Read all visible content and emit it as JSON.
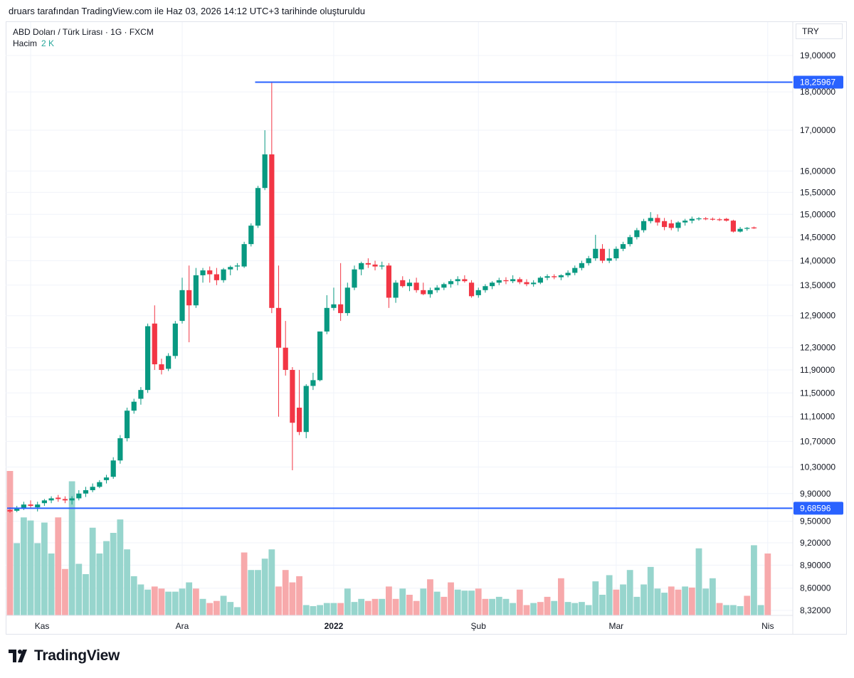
{
  "caption": "druars tarafından TradingView.com ile Haz 03, 2026 14:12 UTC+3 tarihinde oluşturuldu",
  "legend": {
    "symbol": "ABD Doları / Türk Lirası · 1G · FXCM",
    "volume_label": "Hacim",
    "volume_value": "2 K"
  },
  "currency": "TRY",
  "brand": "TradingView",
  "colors": {
    "up": "#089981",
    "down": "#f23645",
    "vol_up": "#97d5cd",
    "vol_down": "#f7a9ab",
    "line": "#2962ff"
  },
  "chart_data": {
    "type": "candlestick",
    "title": "ABD Doları / Türk Lirası · 1G · FXCM",
    "y_scale": "log",
    "y_ticks": [
      "19,00000",
      "18,00000",
      "17,00000",
      "16,00000",
      "15,50000",
      "15,00000",
      "14,50000",
      "14,00000",
      "13,50000",
      "12,90000",
      "12,30000",
      "11,90000",
      "11,50000",
      "11,10000",
      "10,70000",
      "10,30000",
      "9,90000",
      "9,50000",
      "9,20000",
      "8,90000",
      "8,60000",
      "8,32000"
    ],
    "x_ticks": [
      {
        "label": "Kas",
        "index": 3,
        "bold": false
      },
      {
        "label": "Ara",
        "index": 25,
        "bold": false
      },
      {
        "label": "2022",
        "index": 47,
        "bold": true
      },
      {
        "label": "Şub",
        "index": 68,
        "bold": false
      },
      {
        "label": "Mar",
        "index": 88,
        "bold": false
      },
      {
        "label": "Nis",
        "index": 110,
        "bold": false
      }
    ],
    "horizontal_lines": [
      {
        "label": "18,25967",
        "value": 18.25967,
        "start_index": 36
      },
      {
        "label": "9,68596",
        "value": 9.68596,
        "start_index": 0
      }
    ],
    "candles": [
      {
        "o": 9.66,
        "h": 9.7,
        "l": 9.62,
        "c": 9.64
      },
      {
        "o": 9.65,
        "h": 9.72,
        "l": 9.63,
        "c": 9.68
      },
      {
        "o": 9.68,
        "h": 9.78,
        "l": 9.66,
        "c": 9.74
      },
      {
        "o": 9.74,
        "h": 9.8,
        "l": 9.68,
        "c": 9.72
      },
      {
        "o": 9.7,
        "h": 9.78,
        "l": 9.64,
        "c": 9.74
      },
      {
        "o": 9.76,
        "h": 9.82,
        "l": 9.72,
        "c": 9.8
      },
      {
        "o": 9.8,
        "h": 9.86,
        "l": 9.76,
        "c": 9.83
      },
      {
        "o": 9.84,
        "h": 9.88,
        "l": 9.78,
        "c": 9.82
      },
      {
        "o": 9.82,
        "h": 9.86,
        "l": 9.76,
        "c": 9.8
      },
      {
        "o": 9.8,
        "h": 9.86,
        "l": 9.74,
        "c": 9.83
      },
      {
        "o": 9.83,
        "h": 9.95,
        "l": 9.8,
        "c": 9.9
      },
      {
        "o": 9.9,
        "h": 10.0,
        "l": 9.85,
        "c": 9.95
      },
      {
        "o": 9.95,
        "h": 10.05,
        "l": 9.92,
        "c": 10.0
      },
      {
        "o": 10.0,
        "h": 10.1,
        "l": 9.98,
        "c": 10.07
      },
      {
        "o": 10.1,
        "h": 10.18,
        "l": 10.05,
        "c": 10.14
      },
      {
        "o": 10.15,
        "h": 10.45,
        "l": 10.12,
        "c": 10.4
      },
      {
        "o": 10.4,
        "h": 10.8,
        "l": 10.35,
        "c": 10.75
      },
      {
        "o": 10.75,
        "h": 11.25,
        "l": 10.7,
        "c": 11.2
      },
      {
        "o": 11.2,
        "h": 11.4,
        "l": 11.15,
        "c": 11.35
      },
      {
        "o": 11.4,
        "h": 11.6,
        "l": 11.3,
        "c": 11.55
      },
      {
        "o": 11.55,
        "h": 12.75,
        "l": 11.5,
        "c": 12.7
      },
      {
        "o": 12.75,
        "h": 13.1,
        "l": 11.9,
        "c": 12.0
      },
      {
        "o": 12.0,
        "h": 12.1,
        "l": 11.82,
        "c": 11.9
      },
      {
        "o": 11.92,
        "h": 12.2,
        "l": 11.88,
        "c": 12.15
      },
      {
        "o": 12.15,
        "h": 12.8,
        "l": 12.1,
        "c": 12.75
      },
      {
        "o": 12.8,
        "h": 13.65,
        "l": 12.75,
        "c": 13.4
      },
      {
        "o": 13.4,
        "h": 13.9,
        "l": 12.4,
        "c": 13.1
      },
      {
        "o": 13.1,
        "h": 13.85,
        "l": 13.05,
        "c": 13.7
      },
      {
        "o": 13.7,
        "h": 13.85,
        "l": 13.55,
        "c": 13.8
      },
      {
        "o": 13.8,
        "h": 13.88,
        "l": 13.55,
        "c": 13.72
      },
      {
        "o": 13.72,
        "h": 13.85,
        "l": 13.5,
        "c": 13.6
      },
      {
        "o": 13.6,
        "h": 13.85,
        "l": 13.55,
        "c": 13.82
      },
      {
        "o": 13.82,
        "h": 13.9,
        "l": 13.7,
        "c": 13.87
      },
      {
        "o": 13.88,
        "h": 13.95,
        "l": 13.8,
        "c": 13.9
      },
      {
        "o": 13.88,
        "h": 14.4,
        "l": 13.85,
        "c": 14.35
      },
      {
        "o": 14.35,
        "h": 14.8,
        "l": 14.3,
        "c": 14.75
      },
      {
        "o": 14.75,
        "h": 15.65,
        "l": 14.7,
        "c": 15.6
      },
      {
        "o": 15.6,
        "h": 17.0,
        "l": 15.55,
        "c": 16.4
      },
      {
        "o": 16.4,
        "h": 18.26,
        "l": 12.95,
        "c": 13.05
      },
      {
        "o": 13.05,
        "h": 13.9,
        "l": 11.1,
        "c": 12.3
      },
      {
        "o": 12.3,
        "h": 12.8,
        "l": 11.8,
        "c": 11.9
      },
      {
        "o": 11.9,
        "h": 11.95,
        "l": 10.25,
        "c": 11.0
      },
      {
        "o": 11.25,
        "h": 11.9,
        "l": 10.8,
        "c": 10.85
      },
      {
        "o": 10.85,
        "h": 11.65,
        "l": 10.75,
        "c": 11.62
      },
      {
        "o": 11.62,
        "h": 11.85,
        "l": 11.55,
        "c": 11.72
      },
      {
        "o": 11.72,
        "h": 12.6,
        "l": 11.7,
        "c": 12.6
      },
      {
        "o": 12.6,
        "h": 13.3,
        "l": 12.55,
        "c": 13.05
      },
      {
        "o": 13.05,
        "h": 13.45,
        "l": 13.0,
        "c": 13.12
      },
      {
        "o": 13.12,
        "h": 13.95,
        "l": 12.8,
        "c": 12.95
      },
      {
        "o": 12.95,
        "h": 13.55,
        "l": 12.9,
        "c": 13.45
      },
      {
        "o": 13.45,
        "h": 13.9,
        "l": 13.4,
        "c": 13.82
      },
      {
        "o": 13.82,
        "h": 13.98,
        "l": 13.7,
        "c": 13.95
      },
      {
        "o": 13.95,
        "h": 14.05,
        "l": 13.85,
        "c": 13.92
      },
      {
        "o": 13.92,
        "h": 14.0,
        "l": 13.8,
        "c": 13.88
      },
      {
        "o": 13.88,
        "h": 13.98,
        "l": 13.82,
        "c": 13.9
      },
      {
        "o": 13.9,
        "h": 13.95,
        "l": 13.05,
        "c": 13.25
      },
      {
        "o": 13.25,
        "h": 13.6,
        "l": 13.15,
        "c": 13.55
      },
      {
        "o": 13.6,
        "h": 13.68,
        "l": 13.45,
        "c": 13.48
      },
      {
        "o": 13.48,
        "h": 13.62,
        "l": 13.38,
        "c": 13.55
      },
      {
        "o": 13.55,
        "h": 13.65,
        "l": 13.35,
        "c": 13.4
      },
      {
        "o": 13.4,
        "h": 13.55,
        "l": 13.3,
        "c": 13.32
      },
      {
        "o": 13.32,
        "h": 13.45,
        "l": 13.25,
        "c": 13.4
      },
      {
        "o": 13.4,
        "h": 13.5,
        "l": 13.35,
        "c": 13.45
      },
      {
        "o": 13.45,
        "h": 13.55,
        "l": 13.4,
        "c": 13.52
      },
      {
        "o": 13.52,
        "h": 13.62,
        "l": 13.45,
        "c": 13.58
      },
      {
        "o": 13.58,
        "h": 13.68,
        "l": 13.5,
        "c": 13.62
      },
      {
        "o": 13.62,
        "h": 13.7,
        "l": 13.55,
        "c": 13.58
      },
      {
        "o": 13.55,
        "h": 13.6,
        "l": 13.25,
        "c": 13.28
      },
      {
        "o": 13.3,
        "h": 13.45,
        "l": 13.25,
        "c": 13.4
      },
      {
        "o": 13.4,
        "h": 13.52,
        "l": 13.35,
        "c": 13.48
      },
      {
        "o": 13.48,
        "h": 13.58,
        "l": 13.42,
        "c": 13.55
      },
      {
        "o": 13.55,
        "h": 13.65,
        "l": 13.5,
        "c": 13.6
      },
      {
        "o": 13.6,
        "h": 13.66,
        "l": 13.52,
        "c": 13.58
      },
      {
        "o": 13.58,
        "h": 13.7,
        "l": 13.54,
        "c": 13.62
      },
      {
        "o": 13.62,
        "h": 13.66,
        "l": 13.52,
        "c": 13.56
      },
      {
        "o": 13.56,
        "h": 13.62,
        "l": 13.48,
        "c": 13.52
      },
      {
        "o": 13.52,
        "h": 13.6,
        "l": 13.47,
        "c": 13.55
      },
      {
        "o": 13.55,
        "h": 13.68,
        "l": 13.52,
        "c": 13.65
      },
      {
        "o": 13.65,
        "h": 13.72,
        "l": 13.6,
        "c": 13.68
      },
      {
        "o": 13.68,
        "h": 13.72,
        "l": 13.62,
        "c": 13.66
      },
      {
        "o": 13.66,
        "h": 13.72,
        "l": 13.6,
        "c": 13.7
      },
      {
        "o": 13.7,
        "h": 13.8,
        "l": 13.66,
        "c": 13.75
      },
      {
        "o": 13.75,
        "h": 13.9,
        "l": 13.7,
        "c": 13.85
      },
      {
        "o": 13.85,
        "h": 14.0,
        "l": 13.8,
        "c": 13.95
      },
      {
        "o": 13.95,
        "h": 14.1,
        "l": 13.9,
        "c": 14.05
      },
      {
        "o": 14.05,
        "h": 14.55,
        "l": 14.0,
        "c": 14.25
      },
      {
        "o": 14.25,
        "h": 14.35,
        "l": 13.95,
        "c": 14.0
      },
      {
        "o": 14.0,
        "h": 14.25,
        "l": 13.95,
        "c": 14.05
      },
      {
        "o": 14.05,
        "h": 14.3,
        "l": 14.0,
        "c": 14.25
      },
      {
        "o": 14.25,
        "h": 14.4,
        "l": 14.2,
        "c": 14.35
      },
      {
        "o": 14.35,
        "h": 14.55,
        "l": 14.3,
        "c": 14.5
      },
      {
        "o": 14.5,
        "h": 14.7,
        "l": 14.45,
        "c": 14.65
      },
      {
        "o": 14.65,
        "h": 14.9,
        "l": 14.6,
        "c": 14.85
      },
      {
        "o": 14.85,
        "h": 15.05,
        "l": 14.8,
        "c": 14.92
      },
      {
        "o": 14.92,
        "h": 15.0,
        "l": 14.75,
        "c": 14.82
      },
      {
        "o": 14.85,
        "h": 14.92,
        "l": 14.65,
        "c": 14.72
      },
      {
        "o": 14.8,
        "h": 14.88,
        "l": 14.65,
        "c": 14.7
      },
      {
        "o": 14.7,
        "h": 14.85,
        "l": 14.62,
        "c": 14.82
      },
      {
        "o": 14.82,
        "h": 14.9,
        "l": 14.75,
        "c": 14.86
      },
      {
        "o": 14.86,
        "h": 14.95,
        "l": 14.8,
        "c": 14.9
      },
      {
        "o": 14.9,
        "h": 14.94,
        "l": 14.86,
        "c": 14.91
      },
      {
        "o": 14.91,
        "h": 14.94,
        "l": 14.87,
        "c": 14.9
      },
      {
        "o": 14.9,
        "h": 14.93,
        "l": 14.86,
        "c": 14.89
      },
      {
        "o": 14.89,
        "h": 14.92,
        "l": 14.85,
        "c": 14.88
      },
      {
        "o": 14.9,
        "h": 14.92,
        "l": 14.84,
        "c": 14.86
      },
      {
        "o": 14.86,
        "h": 14.88,
        "l": 14.6,
        "c": 14.62
      },
      {
        "o": 14.62,
        "h": 14.72,
        "l": 14.6,
        "c": 14.68
      },
      {
        "o": 14.68,
        "h": 14.72,
        "l": 14.64,
        "c": 14.7
      },
      {
        "o": 14.71,
        "h": 14.73,
        "l": 14.68,
        "c": 14.69
      }
    ],
    "volume": [
      {
        "v": 1.4,
        "up": false
      },
      {
        "v": 0.7,
        "up": true
      },
      {
        "v": 0.95,
        "up": true
      },
      {
        "v": 0.92,
        "up": true
      },
      {
        "v": 0.7,
        "up": true
      },
      {
        "v": 0.9,
        "up": true
      },
      {
        "v": 0.6,
        "up": true
      },
      {
        "v": 0.95,
        "up": false
      },
      {
        "v": 0.45,
        "up": false
      },
      {
        "v": 1.3,
        "up": true
      },
      {
        "v": 0.5,
        "up": true
      },
      {
        "v": 0.4,
        "up": true
      },
      {
        "v": 0.85,
        "up": true
      },
      {
        "v": 0.6,
        "up": true
      },
      {
        "v": 0.72,
        "up": true
      },
      {
        "v": 0.8,
        "up": true
      },
      {
        "v": 0.93,
        "up": true
      },
      {
        "v": 0.64,
        "up": true
      },
      {
        "v": 0.38,
        "up": true
      },
      {
        "v": 0.3,
        "up": true
      },
      {
        "v": 0.25,
        "up": true
      },
      {
        "v": 0.28,
        "up": false
      },
      {
        "v": 0.26,
        "up": false
      },
      {
        "v": 0.23,
        "up": true
      },
      {
        "v": 0.23,
        "up": true
      },
      {
        "v": 0.26,
        "up": true
      },
      {
        "v": 0.32,
        "up": true
      },
      {
        "v": 0.26,
        "up": false
      },
      {
        "v": 0.16,
        "up": true
      },
      {
        "v": 0.12,
        "up": false
      },
      {
        "v": 0.14,
        "up": false
      },
      {
        "v": 0.19,
        "up": true
      },
      {
        "v": 0.13,
        "up": true
      },
      {
        "v": 0.08,
        "up": true
      },
      {
        "v": 0.61,
        "up": false
      },
      {
        "v": 0.44,
        "up": true
      },
      {
        "v": 0.44,
        "up": true
      },
      {
        "v": 0.55,
        "up": true
      },
      {
        "v": 0.64,
        "up": true
      },
      {
        "v": 0.28,
        "up": false
      },
      {
        "v": 0.44,
        "up": false
      },
      {
        "v": 0.32,
        "up": false
      },
      {
        "v": 0.38,
        "up": false
      },
      {
        "v": 0.1,
        "up": true
      },
      {
        "v": 0.09,
        "up": true
      },
      {
        "v": 0.1,
        "up": true
      },
      {
        "v": 0.12,
        "up": true
      },
      {
        "v": 0.12,
        "up": true
      },
      {
        "v": 0.12,
        "up": false
      },
      {
        "v": 0.26,
        "up": true
      },
      {
        "v": 0.13,
        "up": true
      },
      {
        "v": 0.16,
        "up": true
      },
      {
        "v": 0.14,
        "up": false
      },
      {
        "v": 0.16,
        "up": false
      },
      {
        "v": 0.16,
        "up": true
      },
      {
        "v": 0.28,
        "up": false
      },
      {
        "v": 0.16,
        "up": false
      },
      {
        "v": 0.26,
        "up": true
      },
      {
        "v": 0.2,
        "up": false
      },
      {
        "v": 0.14,
        "up": false
      },
      {
        "v": 0.26,
        "up": true
      },
      {
        "v": 0.35,
        "up": false
      },
      {
        "v": 0.23,
        "up": true
      },
      {
        "v": 0.18,
        "up": false
      },
      {
        "v": 0.32,
        "up": false
      },
      {
        "v": 0.25,
        "up": true
      },
      {
        "v": 0.24,
        "up": true
      },
      {
        "v": 0.24,
        "up": true
      },
      {
        "v": 0.26,
        "up": false
      },
      {
        "v": 0.16,
        "up": false
      },
      {
        "v": 0.16,
        "up": true
      },
      {
        "v": 0.18,
        "up": true
      },
      {
        "v": 0.16,
        "up": true
      },
      {
        "v": 0.12,
        "up": true
      },
      {
        "v": 0.25,
        "up": false
      },
      {
        "v": 0.1,
        "up": false
      },
      {
        "v": 0.12,
        "up": true
      },
      {
        "v": 0.13,
        "up": false
      },
      {
        "v": 0.18,
        "up": false
      },
      {
        "v": 0.14,
        "up": true
      },
      {
        "v": 0.36,
        "up": false
      },
      {
        "v": 0.13,
        "up": true
      },
      {
        "v": 0.12,
        "up": true
      },
      {
        "v": 0.13,
        "up": true
      },
      {
        "v": 0.1,
        "up": true
      },
      {
        "v": 0.33,
        "up": true
      },
      {
        "v": 0.2,
        "up": true
      },
      {
        "v": 0.39,
        "up": true
      },
      {
        "v": 0.25,
        "up": false
      },
      {
        "v": 0.3,
        "up": true
      },
      {
        "v": 0.44,
        "up": true
      },
      {
        "v": 0.18,
        "up": true
      },
      {
        "v": 0.3,
        "up": true
      },
      {
        "v": 0.47,
        "up": true
      },
      {
        "v": 0.26,
        "up": true
      },
      {
        "v": 0.22,
        "up": true
      },
      {
        "v": 0.28,
        "up": false
      },
      {
        "v": 0.25,
        "up": false
      },
      {
        "v": 0.28,
        "up": true
      },
      {
        "v": 0.27,
        "up": false
      },
      {
        "v": 0.65,
        "up": true
      },
      {
        "v": 0.26,
        "up": true
      },
      {
        "v": 0.36,
        "up": true
      },
      {
        "v": 0.12,
        "up": false
      },
      {
        "v": 0.1,
        "up": true
      },
      {
        "v": 0.1,
        "up": true
      },
      {
        "v": 0.09,
        "up": true
      },
      {
        "v": 0.19,
        "up": false
      },
      {
        "v": 0.68,
        "up": true
      },
      {
        "v": 0.1,
        "up": true
      },
      {
        "v": 0.6,
        "up": false
      }
    ]
  }
}
